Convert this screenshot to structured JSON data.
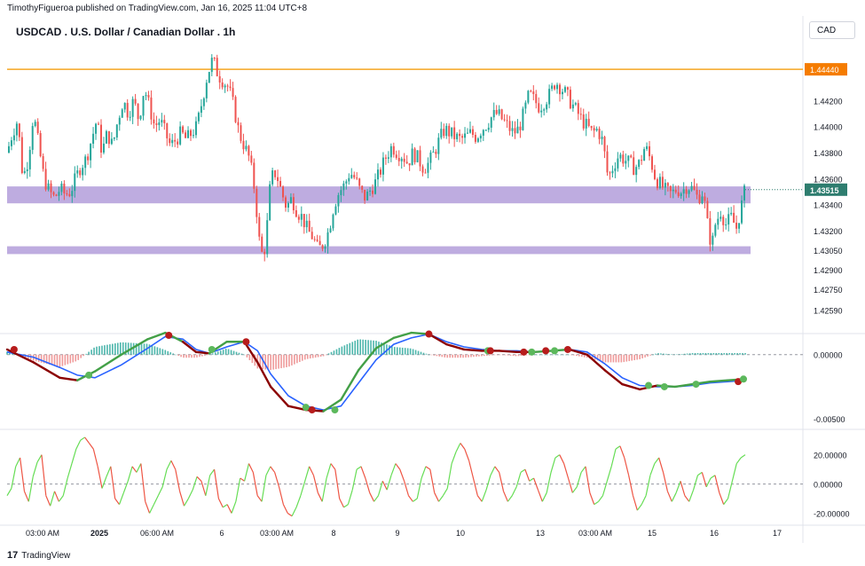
{
  "header": {
    "published_by": "TimothyFigueroa published on TradingView.com, Jan 16, 2025 11:04 UTC+8",
    "title": "USDCAD . U.S. Dollar / Canadian Dollar . 1h",
    "currency": "CAD"
  },
  "footer": {
    "brand": "TradingView",
    "logo_glyph": "17"
  },
  "colors": {
    "up": "#26a69a",
    "down": "#ef5350",
    "resistance": "#f5a623",
    "zone": "#b39ddb",
    "macd_green": "#43a047",
    "macd_red": "#8b0000",
    "signal_blue": "#2962ff",
    "osc_green": "#66dd55",
    "osc_red": "#ee5544",
    "current_label": "#2e7d6f",
    "level_label": "#f57c00"
  },
  "chart_data": [
    {
      "type": "candlestick",
      "title": "USDCAD . U.S. Dollar / Canadian Dollar . 1h",
      "ylim": [
        1.4245,
        1.447
      ],
      "y_ticks": [
        "1.44200",
        "1.44000",
        "1.43800",
        "1.43600",
        "1.43400",
        "1.43200",
        "1.43050",
        "1.42900",
        "1.42750",
        "1.42590"
      ],
      "resistance_level": 1.4444,
      "resistance_label": "1.44440",
      "current_price": 1.43515,
      "current_label": "1.43515",
      "support_zones": [
        [
          1.4341,
          1.4354
        ],
        [
          1.4302,
          1.4308
        ]
      ],
      "x_ticks": [
        "03:00 AM",
        "2025",
        "06:00 AM",
        "6",
        "03:00 AM",
        "8",
        "9",
        "10",
        "13",
        "03:00 AM",
        "15",
        "16",
        "17"
      ],
      "close_path": [
        [
          0,
          1.438
        ],
        [
          6,
          1.4395
        ],
        [
          12,
          1.4405
        ],
        [
          18,
          1.436
        ],
        [
          24,
          1.4375
        ],
        [
          30,
          1.441
        ],
        [
          36,
          1.4385
        ],
        [
          42,
          1.436
        ],
        [
          48,
          1.435
        ],
        [
          54,
          1.4345
        ],
        [
          60,
          1.4352
        ],
        [
          66,
          1.4348
        ],
        [
          72,
          1.435
        ],
        [
          78,
          1.436
        ],
        [
          84,
          1.437
        ],
        [
          90,
          1.4375
        ],
        [
          96,
          1.439
        ],
        [
          102,
          1.4405
        ],
        [
          108,
          1.438
        ],
        [
          114,
          1.4395
        ],
        [
          120,
          1.4385
        ],
        [
          126,
          1.4405
        ],
        [
          132,
          1.442
        ],
        [
          138,
          1.441
        ],
        [
          144,
          1.442
        ],
        [
          150,
          1.4405
        ],
        [
          156,
          1.443
        ],
        [
          162,
          1.4415
        ],
        [
          168,
          1.44
        ],
        [
          174,
          1.4405
        ],
        [
          180,
          1.4395
        ],
        [
          186,
          1.4385
        ],
        [
          192,
          1.439
        ],
        [
          198,
          1.4395
        ],
        [
          204,
          1.439
        ],
        [
          210,
          1.4395
        ],
        [
          216,
          1.44
        ],
        [
          222,
          1.442
        ],
        [
          228,
          1.444
        ],
        [
          234,
          1.4452
        ],
        [
          240,
          1.444
        ],
        [
          246,
          1.4435
        ],
        [
          252,
          1.443
        ],
        [
          258,
          1.4415
        ],
        [
          264,
          1.4395
        ],
        [
          270,
          1.4385
        ],
        [
          276,
          1.4375
        ],
        [
          282,
          1.435
        ],
        [
          288,
          1.4305
        ],
        [
          292,
          1.43
        ],
        [
          296,
          1.4325
        ],
        [
          300,
          1.436
        ],
        [
          306,
          1.4365
        ],
        [
          312,
          1.435
        ],
        [
          318,
          1.4338
        ],
        [
          324,
          1.4345
        ],
        [
          330,
          1.4335
        ],
        [
          336,
          1.433
        ],
        [
          342,
          1.432
        ],
        [
          348,
          1.4315
        ],
        [
          354,
          1.4305
        ],
        [
          360,
          1.431
        ],
        [
          366,
          1.432
        ],
        [
          372,
          1.434
        ],
        [
          378,
          1.435
        ],
        [
          384,
          1.4355
        ],
        [
          390,
          1.4365
        ],
        [
          396,
          1.436
        ],
        [
          402,
          1.435
        ],
        [
          408,
          1.4345
        ],
        [
          414,
          1.4352
        ],
        [
          420,
          1.4358
        ],
        [
          426,
          1.4368
        ],
        [
          432,
          1.4378
        ],
        [
          438,
          1.4385
        ],
        [
          444,
          1.438
        ],
        [
          450,
          1.4378
        ],
        [
          456,
          1.4372
        ],
        [
          462,
          1.438
        ],
        [
          468,
          1.4375
        ],
        [
          474,
          1.4368
        ],
        [
          480,
          1.4372
        ],
        [
          486,
          1.438
        ],
        [
          492,
          1.439
        ],
        [
          498,
          1.4398
        ],
        [
          504,
          1.4395
        ],
        [
          510,
          1.4392
        ],
        [
          516,
          1.439
        ],
        [
          522,
          1.4392
        ],
        [
          528,
          1.4395
        ],
        [
          534,
          1.4392
        ],
        [
          540,
          1.4398
        ],
        [
          546,
          1.4402
        ],
        [
          552,
          1.4408
        ],
        [
          558,
          1.441
        ],
        [
          564,
          1.4405
        ],
        [
          570,
          1.44
        ],
        [
          576,
          1.4395
        ],
        [
          582,
          1.4398
        ],
        [
          588,
          1.441
        ],
        [
          594,
          1.4425
        ],
        [
          600,
          1.442
        ],
        [
          606,
          1.4415
        ],
        [
          612,
          1.442
        ],
        [
          618,
          1.4425
        ],
        [
          624,
          1.4435
        ],
        [
          630,
          1.443
        ],
        [
          636,
          1.4425
        ],
        [
          642,
          1.4418
        ],
        [
          648,
          1.4412
        ],
        [
          654,
          1.4405
        ],
        [
          660,
          1.44
        ],
        [
          666,
          1.4395
        ],
        [
          672,
          1.4398
        ],
        [
          678,
          1.4388
        ],
        [
          684,
          1.436
        ],
        [
          690,
          1.437
        ],
        [
          696,
          1.4378
        ],
        [
          702,
          1.4375
        ],
        [
          708,
          1.4372
        ],
        [
          714,
          1.4368
        ],
        [
          720,
          1.4372
        ],
        [
          726,
          1.4385
        ],
        [
          732,
          1.4375
        ],
        [
          738,
          1.436
        ],
        [
          744,
          1.4355
        ],
        [
          750,
          1.435
        ],
        [
          756,
          1.4348
        ],
        [
          762,
          1.4352
        ],
        [
          768,
          1.435
        ],
        [
          774,
          1.4355
        ],
        [
          780,
          1.4352
        ],
        [
          786,
          1.4345
        ],
        [
          792,
          1.435
        ],
        [
          798,
          1.432
        ],
        [
          802,
          1.4308
        ],
        [
          806,
          1.4325
        ],
        [
          812,
          1.4335
        ],
        [
          818,
          1.4325
        ],
        [
          824,
          1.433
        ],
        [
          830,
          1.4322
        ],
        [
          836,
          1.434
        ],
        [
          840,
          1.4352
        ]
      ]
    },
    {
      "type": "macd",
      "ylim": [
        -0.0054,
        0.0015
      ],
      "y_ticks": [
        "0.00000",
        "-0.00500"
      ],
      "macd_path": [
        [
          0,
          0.0004
        ],
        [
          30,
          -0.0006
        ],
        [
          60,
          -0.0018
        ],
        [
          80,
          -0.002
        ],
        [
          100,
          -0.0013
        ],
        [
          130,
          0.0
        ],
        [
          160,
          0.0012
        ],
        [
          180,
          0.0017
        ],
        [
          200,
          0.001
        ],
        [
          215,
          0.0002
        ],
        [
          230,
          0.0001
        ],
        [
          250,
          0.001
        ],
        [
          270,
          0.001
        ],
        [
          285,
          -0.0006
        ],
        [
          300,
          -0.0025
        ],
        [
          320,
          -0.004
        ],
        [
          340,
          -0.0043
        ],
        [
          360,
          -0.0044
        ],
        [
          380,
          -0.0035
        ],
        [
          400,
          -0.0012
        ],
        [
          420,
          0.0005
        ],
        [
          440,
          0.0013
        ],
        [
          460,
          0.0017
        ],
        [
          480,
          0.0016
        ],
        [
          500,
          0.0008
        ],
        [
          520,
          0.0004
        ],
        [
          540,
          0.0003
        ],
        [
          560,
          0.0003
        ],
        [
          580,
          0.0002
        ],
        [
          600,
          0.0002
        ],
        [
          620,
          0.0003
        ],
        [
          640,
          0.0004
        ],
        [
          660,
          0.0
        ],
        [
          680,
          -0.0012
        ],
        [
          700,
          -0.0023
        ],
        [
          720,
          -0.0027
        ],
        [
          740,
          -0.0024
        ],
        [
          760,
          -0.0025
        ],
        [
          780,
          -0.0023
        ],
        [
          800,
          -0.0021
        ],
        [
          820,
          -0.002
        ],
        [
          840,
          -0.0019
        ]
      ],
      "signal_path": [
        [
          0,
          0.0002
        ],
        [
          30,
          -0.0002
        ],
        [
          60,
          -0.001
        ],
        [
          80,
          -0.0016
        ],
        [
          100,
          -0.0018
        ],
        [
          130,
          -0.0008
        ],
        [
          160,
          0.0005
        ],
        [
          180,
          0.0014
        ],
        [
          200,
          0.0012
        ],
        [
          215,
          0.0004
        ],
        [
          230,
          0.0001
        ],
        [
          250,
          0.0006
        ],
        [
          270,
          0.001
        ],
        [
          285,
          0.0003
        ],
        [
          300,
          -0.0015
        ],
        [
          320,
          -0.0032
        ],
        [
          340,
          -0.004
        ],
        [
          360,
          -0.0043
        ],
        [
          380,
          -0.004
        ],
        [
          400,
          -0.0022
        ],
        [
          420,
          -0.0004
        ],
        [
          440,
          0.0008
        ],
        [
          460,
          0.0013
        ],
        [
          480,
          0.0016
        ],
        [
          500,
          0.001
        ],
        [
          520,
          0.0006
        ],
        [
          540,
          0.0004
        ],
        [
          560,
          0.0003
        ],
        [
          580,
          0.0003
        ],
        [
          600,
          0.0002
        ],
        [
          620,
          0.0003
        ],
        [
          640,
          0.0004
        ],
        [
          660,
          0.0002
        ],
        [
          680,
          -0.0007
        ],
        [
          700,
          -0.0018
        ],
        [
          720,
          -0.0024
        ],
        [
          740,
          -0.0025
        ],
        [
          760,
          -0.0025
        ],
        [
          780,
          -0.0024
        ],
        [
          800,
          -0.0022
        ],
        [
          820,
          -0.0021
        ],
        [
          840,
          -0.002
        ]
      ],
      "cross_markers": [
        {
          "x": 8,
          "value": 0.0004,
          "kind": "down"
        },
        {
          "x": 93,
          "value": -0.0016,
          "kind": "up"
        },
        {
          "x": 184,
          "value": 0.0015,
          "kind": "down"
        },
        {
          "x": 233,
          "value": 0.0004,
          "kind": "up"
        },
        {
          "x": 272,
          "value": 0.001,
          "kind": "down"
        },
        {
          "x": 340,
          "value": -0.0041,
          "kind": "up"
        },
        {
          "x": 347,
          "value": -0.0043,
          "kind": "down"
        },
        {
          "x": 373,
          "value": -0.0043,
          "kind": "up"
        },
        {
          "x": 480,
          "value": 0.0016,
          "kind": "down"
        },
        {
          "x": 547,
          "value": 0.0003,
          "kind": "up"
        },
        {
          "x": 550,
          "value": 0.0003,
          "kind": "down"
        },
        {
          "x": 588,
          "value": 0.0002,
          "kind": "down"
        },
        {
          "x": 597,
          "value": 0.0002,
          "kind": "up"
        },
        {
          "x": 613,
          "value": 0.0003,
          "kind": "down"
        },
        {
          "x": 623,
          "value": 0.0003,
          "kind": "up"
        },
        {
          "x": 638,
          "value": 0.0004,
          "kind": "down"
        },
        {
          "x": 730,
          "value": -0.0024,
          "kind": "up"
        },
        {
          "x": 748,
          "value": -0.0025,
          "kind": "up"
        },
        {
          "x": 784,
          "value": -0.0023,
          "kind": "up"
        },
        {
          "x": 832,
          "value": -0.0021,
          "kind": "down"
        },
        {
          "x": 838,
          "value": -0.0019,
          "kind": "up"
        }
      ]
    },
    {
      "type": "oscillator",
      "ylim": [
        -27,
        35
      ],
      "y_ticks": [
        "20.00000",
        "0.00000",
        "-20.00000"
      ],
      "values": [
        -8,
        -3,
        12,
        18,
        -5,
        -12,
        5,
        15,
        20,
        -8,
        -15,
        -5,
        -12,
        -8,
        4,
        14,
        24,
        30,
        32,
        28,
        24,
        12,
        -3,
        5,
        12,
        -10,
        -14,
        -6,
        2,
        12,
        8,
        14,
        -12,
        -20,
        -14,
        -8,
        -2,
        10,
        16,
        10,
        -5,
        -15,
        -10,
        -4,
        5,
        2,
        -8,
        6,
        10,
        -10,
        -16,
        -14,
        -20,
        -12,
        4,
        2,
        14,
        8,
        -8,
        -12,
        6,
        12,
        8,
        -2,
        -14,
        -20,
        -22,
        -16,
        -8,
        2,
        12,
        6,
        -6,
        -12,
        4,
        14,
        10,
        -10,
        -16,
        -14,
        -4,
        10,
        12,
        4,
        -6,
        -12,
        -8,
        2,
        -4,
        6,
        14,
        10,
        2,
        -8,
        -12,
        -10,
        4,
        12,
        10,
        -6,
        -12,
        -8,
        -3,
        14,
        22,
        28,
        24,
        16,
        4,
        -8,
        -12,
        -4,
        6,
        12,
        8,
        -5,
        -12,
        -8,
        -2,
        8,
        10,
        2,
        4,
        -4,
        -12,
        -6,
        8,
        18,
        20,
        14,
        4,
        -6,
        -2,
        8,
        12,
        -6,
        -14,
        -12,
        -8,
        2,
        12,
        24,
        26,
        18,
        6,
        -8,
        -18,
        -14,
        -8,
        6,
        14,
        18,
        8,
        -5,
        -12,
        -6,
        2,
        -8,
        -12,
        -4,
        6,
        8,
        -2,
        4,
        6,
        -6,
        -14,
        -10,
        2,
        14,
        18,
        20
      ]
    }
  ]
}
